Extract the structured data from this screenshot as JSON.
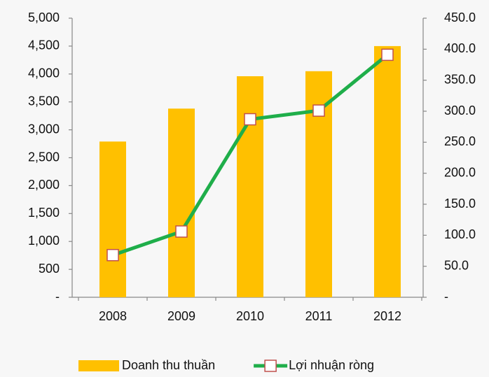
{
  "chart_data": {
    "type": "bar-line",
    "categories": [
      "2008",
      "2009",
      "2010",
      "2011",
      "2012"
    ],
    "series": [
      {
        "name": "Doanh thu thuần",
        "type": "bar",
        "color": "#FFC000",
        "values": [
          2790,
          3380,
          3960,
          4050,
          4500
        ]
      },
      {
        "name": "Lợi nhuận ròng",
        "type": "line",
        "axis": "y2",
        "color": "#1FAE4A",
        "marker_edge": "#C0504D",
        "values": [
          68,
          106,
          287,
          301,
          391
        ]
      }
    ],
    "ylim": [
      0,
      5000
    ],
    "yticks": [
      {
        "value": 0,
        "label": "-"
      },
      500,
      {
        "value": 1000,
        "label": "1,000"
      },
      {
        "value": 1500,
        "label": "1,500"
      },
      {
        "value": 2000,
        "label": "2,000"
      },
      {
        "value": 2500,
        "label": "2,500"
      },
      {
        "value": 3000,
        "label": "3,000"
      },
      {
        "value": 3500,
        "label": "3,500"
      },
      {
        "value": 4000,
        "label": "4,000"
      },
      {
        "value": 4500,
        "label": "4,500"
      },
      {
        "value": 5000,
        "label": "5,000"
      }
    ],
    "y2lim": [
      0,
      450
    ],
    "y2ticks": [
      {
        "value": 0,
        "label": "-"
      },
      {
        "value": 50,
        "label": "50.0"
      },
      {
        "value": 100,
        "label": "100.0"
      },
      {
        "value": 150,
        "label": "150.0"
      },
      {
        "value": 200,
        "label": "200.0"
      },
      {
        "value": 250,
        "label": "250.0"
      },
      {
        "value": 300,
        "label": "300.0"
      },
      {
        "value": 350,
        "label": "350.0"
      },
      {
        "value": 400,
        "label": "400.0"
      },
      {
        "value": 450,
        "label": "450.0"
      }
    ],
    "legend": "bottom"
  }
}
